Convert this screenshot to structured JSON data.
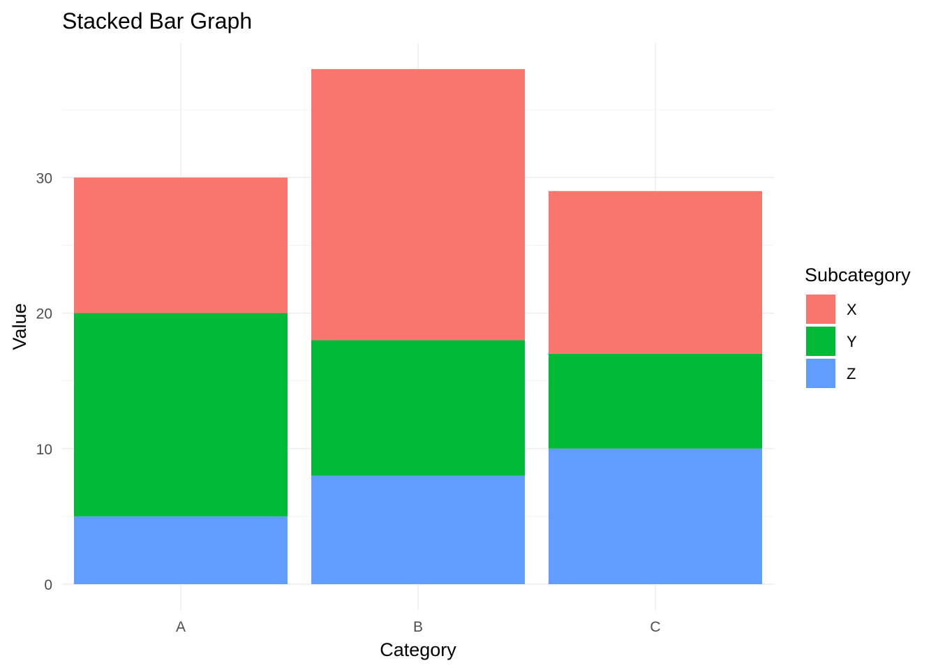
{
  "chart_data": {
    "type": "bar",
    "stacked": true,
    "title": "Stacked Bar Graph",
    "xlabel": "Category",
    "ylabel": "Value",
    "categories": [
      "A",
      "B",
      "C"
    ],
    "series": [
      {
        "name": "X",
        "values": [
          10,
          20,
          12
        ],
        "color": "#F8766D"
      },
      {
        "name": "Y",
        "values": [
          15,
          10,
          7
        ],
        "color": "#00BA38"
      },
      {
        "name": "Z",
        "values": [
          5,
          8,
          10
        ],
        "color": "#619CFF"
      }
    ],
    "stack_order_bottom_to_top": [
      "Z",
      "Y",
      "X"
    ],
    "ylim": [
      0,
      38
    ],
    "yticks": [
      "0",
      "10",
      "20",
      "30"
    ],
    "grid": true,
    "legend": {
      "title": "Subcategory",
      "position": "right",
      "entries": [
        "X",
        "Y",
        "Z"
      ]
    }
  }
}
